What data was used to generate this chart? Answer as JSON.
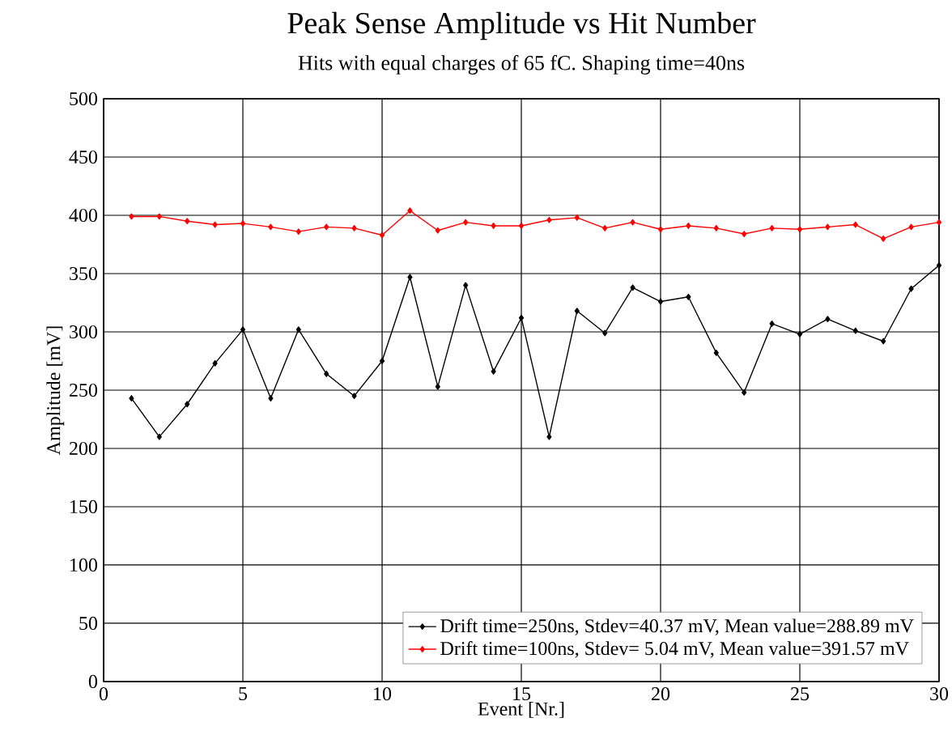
{
  "chart_data": {
    "type": "line",
    "title": "Peak Sense Amplitude vs Hit Number",
    "subtitle": "Hits with equal charges of 65 fC. Shaping time=40ns",
    "xlabel": "Event [Nr.]",
    "ylabel": "Amplitude [mV]",
    "x": [
      1,
      2,
      3,
      4,
      5,
      6,
      7,
      8,
      9,
      10,
      11,
      12,
      13,
      14,
      15,
      16,
      17,
      18,
      19,
      20,
      21,
      22,
      23,
      24,
      25,
      26,
      27,
      28,
      29,
      30
    ],
    "series": [
      {
        "name": "Drift time=250ns, Stdev=40.37 mV, Mean value=288.89 mV",
        "color": "#000000",
        "values": [
          243,
          210,
          238,
          273,
          302,
          243,
          302,
          264,
          245,
          275,
          347,
          253,
          340,
          266,
          312,
          210,
          318,
          299,
          338,
          326,
          330,
          282,
          248,
          307,
          298,
          311,
          301,
          292,
          337,
          357
        ]
      },
      {
        "name": "Drift time=100ns, Stdev= 5.04 mV, Mean value=391.57 mV",
        "color": "#ff0000",
        "values": [
          399,
          399,
          395,
          392,
          393,
          390,
          386,
          390,
          389,
          383,
          404,
          387,
          394,
          391,
          391,
          396,
          398,
          389,
          394,
          388,
          391,
          389,
          384,
          389,
          388,
          390,
          392,
          380,
          390,
          394
        ]
      }
    ],
    "xlim": [
      0,
      30
    ],
    "ylim": [
      0,
      500
    ],
    "xticks": [
      0,
      5,
      10,
      15,
      20,
      25,
      30
    ],
    "yticks": [
      0,
      50,
      100,
      150,
      200,
      250,
      300,
      350,
      400,
      450,
      500
    ],
    "grid": true,
    "legend": "bottom right",
    "marker": "diamond",
    "line_style": "solid"
  }
}
